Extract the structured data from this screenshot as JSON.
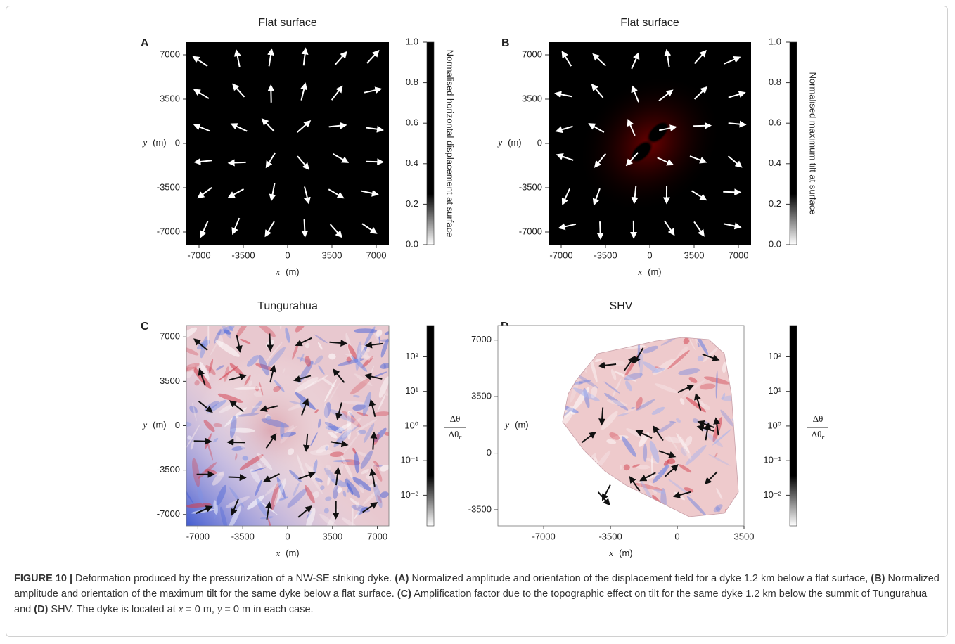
{
  "panels": [
    {
      "letter": "A",
      "title": "Flat surface",
      "xlabel": "x",
      "xunit": "(m)",
      "ylabel": "y",
      "yunit": "(m)",
      "xlim": [
        -8000,
        8000
      ],
      "ylim": [
        -8000,
        8000
      ],
      "xticks": [
        -7000,
        -3500,
        0,
        3500,
        7000
      ],
      "yticks": [
        -7000,
        -3500,
        0,
        3500,
        7000
      ],
      "colorbar": {
        "label": "Normalised horizontal displacement at surface",
        "lim": [
          0,
          1
        ],
        "ticks": [
          {
            "value": 0,
            "label": "0.0"
          },
          0.2,
          0.4,
          0.6,
          0.8,
          {
            "value": 1,
            "label": "1.0"
          }
        ],
        "colormap": [
          "#000000",
          "#8a0000",
          "#e81c00",
          "#ff7a00",
          "#ffc21a"
        ]
      }
    },
    {
      "letter": "B",
      "title": "Flat surface",
      "xlabel": "x",
      "xunit": "(m)",
      "ylabel": "y",
      "yunit": "(m)",
      "xlim": [
        -8000,
        8000
      ],
      "ylim": [
        -8000,
        8000
      ],
      "xticks": [
        -7000,
        -3500,
        0,
        3500,
        7000
      ],
      "yticks": [
        -7000,
        -3500,
        0,
        3500,
        7000
      ],
      "colorbar": {
        "label": "Normalised maximum tilt at surface",
        "lim": [
          0,
          1
        ],
        "ticks": [
          {
            "value": 0,
            "label": "0.0"
          },
          0.2,
          0.4,
          0.6,
          0.8,
          {
            "value": 1,
            "label": "1.0"
          }
        ],
        "colormap": [
          "#000000",
          "#8a0000",
          "#e81c00",
          "#ff7a00",
          "#ffc21a"
        ]
      }
    },
    {
      "letter": "C",
      "title": "Tungurahua",
      "xlabel": "x",
      "xunit": "(m)",
      "ylabel": "y",
      "yunit": "(m)",
      "xlim": [
        -7900,
        7900
      ],
      "ylim": [
        -7900,
        7900
      ],
      "xticks": [
        -7000,
        -3500,
        0,
        3500,
        7000
      ],
      "yticks": [
        -7000,
        -3500,
        0,
        3500,
        7000
      ],
      "colorbar": {
        "numerator": "Δθ",
        "denominator": "Δθ",
        "denominator_sub": "r",
        "lim": [
          0.0013,
          800
        ],
        "log": true,
        "ticks": [
          {
            "value": 100,
            "label": "10²"
          },
          {
            "value": 10,
            "label": "10¹"
          },
          {
            "value": 1,
            "label": "10⁰"
          },
          {
            "value": 0.1,
            "label": "10⁻¹"
          },
          {
            "value": 0.01,
            "label": "10⁻²"
          }
        ],
        "colormap": [
          "#0a0a6e",
          "#4a5fd6",
          "#ffffff",
          "#d8404a",
          "#6e0000"
        ]
      }
    },
    {
      "letter": "D",
      "title": "SHV",
      "xlabel": "x",
      "xunit": "(m)",
      "ylabel": "y",
      "yunit": "(m)",
      "xlim": [
        -9400,
        3500
      ],
      "ylim": [
        -4500,
        7900
      ],
      "xticks": [
        -7000,
        -3500,
        0,
        3500
      ],
      "yticks": [
        -3500,
        0,
        3500,
        7000
      ],
      "colorbar": {
        "numerator": "Δθ",
        "denominator": "Δθ",
        "denominator_sub": "r",
        "lim": [
          0.0013,
          800
        ],
        "log": true,
        "ticks": [
          {
            "value": 100,
            "label": "10²"
          },
          {
            "value": 10,
            "label": "10¹"
          },
          {
            "value": 1,
            "label": "10⁰"
          },
          {
            "value": 0.1,
            "label": "10⁻¹"
          },
          {
            "value": 0.01,
            "label": "10⁻²"
          }
        ],
        "colormap": [
          "#0a0a6e",
          "#4a5fd6",
          "#ffffff",
          "#d8404a",
          "#6e0000"
        ]
      }
    }
  ],
  "caption": {
    "parts": [
      {
        "text": "FIGURE 10 |",
        "bold": true
      },
      {
        "text": " Deformation produced by the pressurization of a NW-SE striking dyke. "
      },
      {
        "text": "(A)",
        "bold": true
      },
      {
        "text": " Normalized amplitude and orientation of the displacement field for a dyke 1.2 km below a flat surface, "
      },
      {
        "text": "(B)",
        "bold": true
      },
      {
        "text": " Normalized amplitude and orientation of the maximum tilt for the same dyke below a flat surface. "
      },
      {
        "text": "(C)",
        "bold": true
      },
      {
        "text": " Amplification factor due to the topographic effect on tilt for the same dyke 1.2 km below the summit of Tungurahua and "
      },
      {
        "text": "(D)",
        "bold": true
      },
      {
        "text": " SHV. The dyke is located at "
      },
      {
        "text": "x",
        "italic": true
      },
      {
        "text": " = 0 m, "
      },
      {
        "text": "y",
        "italic": true
      },
      {
        "text": " = 0 m in each case."
      }
    ]
  }
}
